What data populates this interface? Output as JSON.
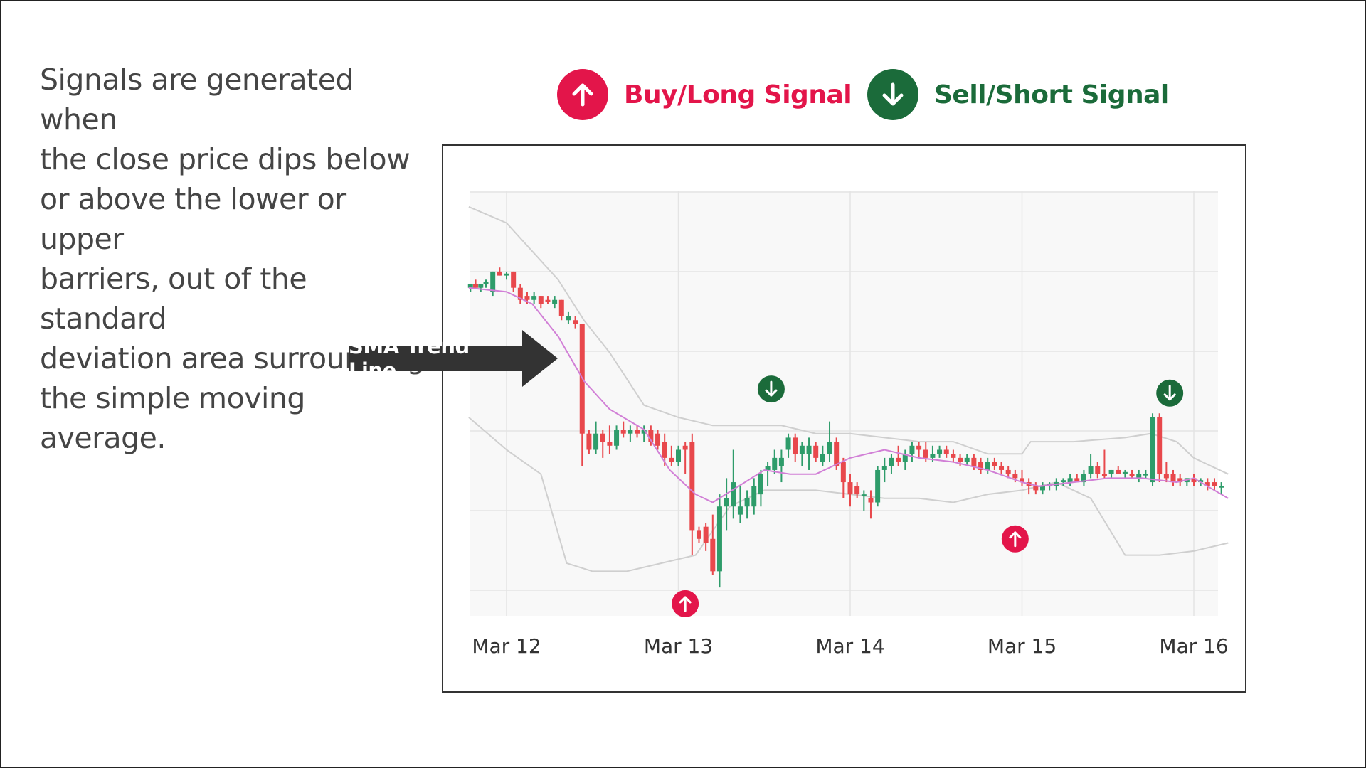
{
  "description": "Signals are generated when the close price dips below or above the lower or upper barriers, out of the standard deviation area surrounding the simple moving average.",
  "description_lines": [
    "Signals are generated when",
    "the close price dips below",
    "or above the lower or upper",
    "barriers, out of the standard",
    "deviation area surrounding",
    "the simple moving average."
  ],
  "legend": {
    "buy": {
      "label": "Buy/Long Signal",
      "icon": "arrow-up-icon",
      "color": "#e3154a"
    },
    "sell": {
      "label": "Sell/Short Signal",
      "icon": "arrow-down-icon",
      "color": "#1b6b3a"
    }
  },
  "callout": {
    "label": "SMA Trend Line",
    "icon": "arrow-right-icon",
    "color": "#333333"
  },
  "colors": {
    "up_candle": "#2e9c6a",
    "down_candle": "#e8484c",
    "sma": "#d17fd6",
    "band": "#cfcfcf",
    "plot_bg": "#f8f8f8",
    "grid": "#e4e4e4"
  },
  "chart_data": {
    "type": "candlestick",
    "title": "",
    "xlabel": "",
    "ylabel": "",
    "x_ticks": [
      "Mar 12",
      "Mar 13",
      "Mar 14",
      "Mar 15",
      "Mar 16"
    ],
    "x_range": [
      -0.22,
      4.2
    ],
    "y_range": [
      -5,
      100
    ],
    "grid": true,
    "indicators": [
      "SMA",
      "Bollinger Bands (upper/lower)"
    ],
    "sma": [
      [
        -0.22,
        76
      ],
      [
        0,
        75
      ],
      [
        0.15,
        72
      ],
      [
        0.3,
        64
      ],
      [
        0.45,
        53
      ],
      [
        0.6,
        46
      ],
      [
        0.8,
        41
      ],
      [
        0.95,
        31
      ],
      [
        1.1,
        25
      ],
      [
        1.2,
        23
      ],
      [
        1.35,
        27
      ],
      [
        1.5,
        31
      ],
      [
        1.65,
        30
      ],
      [
        1.8,
        30
      ],
      [
        2.0,
        34
      ],
      [
        2.2,
        36
      ],
      [
        2.4,
        34
      ],
      [
        2.6,
        33
      ],
      [
        2.8,
        31
      ],
      [
        3.0,
        28
      ],
      [
        3.1,
        27
      ],
      [
        3.3,
        28
      ],
      [
        3.5,
        29
      ],
      [
        3.7,
        29
      ],
      [
        3.9,
        28
      ],
      [
        4.0,
        29
      ],
      [
        4.2,
        24
      ]
    ],
    "upper_band": [
      [
        -0.22,
        96
      ],
      [
        0,
        92
      ],
      [
        0.15,
        85
      ],
      [
        0.3,
        78
      ],
      [
        0.45,
        68
      ],
      [
        0.6,
        60
      ],
      [
        0.8,
        47
      ],
      [
        1.0,
        44
      ],
      [
        1.2,
        42
      ],
      [
        1.4,
        42
      ],
      [
        1.6,
        42
      ],
      [
        1.8,
        40
      ],
      [
        2.0,
        40
      ],
      [
        2.2,
        39
      ],
      [
        2.4,
        38
      ],
      [
        2.6,
        38
      ],
      [
        2.8,
        35
      ],
      [
        3.0,
        35
      ],
      [
        3.05,
        38
      ],
      [
        3.3,
        38
      ],
      [
        3.6,
        39
      ],
      [
        3.75,
        40
      ],
      [
        3.9,
        38
      ],
      [
        4.0,
        34
      ],
      [
        4.1,
        32
      ],
      [
        4.2,
        30
      ]
    ],
    "lower_band": [
      [
        -0.22,
        44
      ],
      [
        0,
        36
      ],
      [
        0.2,
        30
      ],
      [
        0.35,
        8
      ],
      [
        0.5,
        6
      ],
      [
        0.7,
        6
      ],
      [
        0.9,
        8
      ],
      [
        1.1,
        10
      ],
      [
        1.3,
        22
      ],
      [
        1.5,
        26
      ],
      [
        1.8,
        26
      ],
      [
        2.0,
        25
      ],
      [
        2.2,
        24
      ],
      [
        2.4,
        24
      ],
      [
        2.6,
        23
      ],
      [
        2.8,
        25
      ],
      [
        3.0,
        26
      ],
      [
        3.2,
        28
      ],
      [
        3.4,
        24
      ],
      [
        3.6,
        10
      ],
      [
        3.8,
        10
      ],
      [
        4.0,
        11
      ],
      [
        4.2,
        13
      ]
    ],
    "candles": [
      {
        "t": -0.21,
        "o": 76,
        "h": 77,
        "l": 75,
        "c": 77
      },
      {
        "t": -0.18,
        "o": 77,
        "h": 78,
        "l": 76,
        "c": 76
      },
      {
        "t": -0.15,
        "o": 76,
        "h": 77,
        "l": 75,
        "c": 77
      },
      {
        "t": -0.12,
        "o": 77,
        "h": 78,
        "l": 76,
        "c": 77.5
      },
      {
        "t": -0.08,
        "o": 75,
        "h": 80,
        "l": 74,
        "c": 80
      },
      {
        "t": -0.04,
        "o": 80,
        "h": 81,
        "l": 79,
        "c": 79
      },
      {
        "t": 0.0,
        "o": 79,
        "h": 80,
        "l": 78,
        "c": 79.5
      },
      {
        "t": 0.04,
        "o": 80,
        "h": 80,
        "l": 75,
        "c": 76
      },
      {
        "t": 0.08,
        "o": 76,
        "h": 77,
        "l": 72,
        "c": 73
      },
      {
        "t": 0.12,
        "o": 74,
        "h": 75,
        "l": 72,
        "c": 73
      },
      {
        "t": 0.16,
        "o": 73,
        "h": 75,
        "l": 72,
        "c": 74
      },
      {
        "t": 0.2,
        "o": 74,
        "h": 74,
        "l": 71,
        "c": 72
      },
      {
        "t": 0.24,
        "o": 73,
        "h": 74,
        "l": 72,
        "c": 72.5
      },
      {
        "t": 0.28,
        "o": 72,
        "h": 74,
        "l": 71,
        "c": 73
      },
      {
        "t": 0.32,
        "o": 73,
        "h": 73,
        "l": 68,
        "c": 69
      },
      {
        "t": 0.36,
        "o": 68,
        "h": 70,
        "l": 67,
        "c": 69
      },
      {
        "t": 0.4,
        "o": 68,
        "h": 69,
        "l": 66,
        "c": 67
      },
      {
        "t": 0.44,
        "o": 67,
        "h": 67,
        "l": 32,
        "c": 40
      },
      {
        "t": 0.48,
        "o": 40,
        "h": 41,
        "l": 35,
        "c": 36
      },
      {
        "t": 0.52,
        "o": 36,
        "h": 43,
        "l": 35,
        "c": 40
      },
      {
        "t": 0.56,
        "o": 40,
        "h": 41,
        "l": 34,
        "c": 38
      },
      {
        "t": 0.6,
        "o": 38,
        "h": 42,
        "l": 35,
        "c": 37
      },
      {
        "t": 0.64,
        "o": 37,
        "h": 42,
        "l": 36,
        "c": 41
      },
      {
        "t": 0.68,
        "o": 41,
        "h": 43,
        "l": 39,
        "c": 40
      },
      {
        "t": 0.72,
        "o": 40,
        "h": 42,
        "l": 38,
        "c": 41
      },
      {
        "t": 0.76,
        "o": 41,
        "h": 42,
        "l": 39,
        "c": 40
      },
      {
        "t": 0.8,
        "o": 40,
        "h": 42,
        "l": 38,
        "c": 41
      },
      {
        "t": 0.84,
        "o": 41,
        "h": 42,
        "l": 37,
        "c": 38
      },
      {
        "t": 0.88,
        "o": 40,
        "h": 41,
        "l": 36,
        "c": 37
      },
      {
        "t": 0.92,
        "o": 38,
        "h": 40,
        "l": 32,
        "c": 34
      },
      {
        "t": 0.96,
        "o": 34,
        "h": 37,
        "l": 32,
        "c": 33
      },
      {
        "t": 1.0,
        "o": 33,
        "h": 37,
        "l": 32,
        "c": 36
      },
      {
        "t": 1.04,
        "o": 37,
        "h": 38,
        "l": 30,
        "c": 36
      },
      {
        "t": 1.08,
        "o": 38,
        "h": 40,
        "l": 10,
        "c": 16
      },
      {
        "t": 1.12,
        "o": 16,
        "h": 17,
        "l": 13,
        "c": 14
      },
      {
        "t": 1.16,
        "o": 17,
        "h": 18,
        "l": 11,
        "c": 13
      },
      {
        "t": 1.2,
        "o": 14,
        "h": 20,
        "l": 5,
        "c": 6
      },
      {
        "t": 1.24,
        "o": 6,
        "h": 25,
        "l": 2,
        "c": 22
      },
      {
        "t": 1.28,
        "o": 22,
        "h": 29,
        "l": 16,
        "c": 24
      },
      {
        "t": 1.32,
        "o": 22,
        "h": 36,
        "l": 19,
        "c": 28
      },
      {
        "t": 1.36,
        "o": 20,
        "h": 27,
        "l": 18,
        "c": 22
      },
      {
        "t": 1.4,
        "o": 22,
        "h": 26,
        "l": 19,
        "c": 24
      },
      {
        "t": 1.44,
        "o": 22,
        "h": 29,
        "l": 20,
        "c": 27
      },
      {
        "t": 1.48,
        "o": 25,
        "h": 31,
        "l": 22,
        "c": 30
      },
      {
        "t": 1.52,
        "o": 31,
        "h": 33,
        "l": 27,
        "c": 32
      },
      {
        "t": 1.56,
        "o": 31,
        "h": 36,
        "l": 30,
        "c": 34
      },
      {
        "t": 1.6,
        "o": 32,
        "h": 36,
        "l": 28,
        "c": 34
      },
      {
        "t": 1.64,
        "o": 36,
        "h": 40,
        "l": 34,
        "c": 39
      },
      {
        "t": 1.68,
        "o": 39,
        "h": 40,
        "l": 33,
        "c": 35
      },
      {
        "t": 1.72,
        "o": 35,
        "h": 38,
        "l": 32,
        "c": 37
      },
      {
        "t": 1.76,
        "o": 35,
        "h": 39,
        "l": 31,
        "c": 37
      },
      {
        "t": 1.8,
        "o": 37,
        "h": 38,
        "l": 33,
        "c": 34
      },
      {
        "t": 1.84,
        "o": 33,
        "h": 37,
        "l": 32,
        "c": 35
      },
      {
        "t": 1.88,
        "o": 35,
        "h": 43,
        "l": 33,
        "c": 38
      },
      {
        "t": 1.92,
        "o": 38,
        "h": 39,
        "l": 31,
        "c": 32
      },
      {
        "t": 1.96,
        "o": 33,
        "h": 34,
        "l": 24,
        "c": 28
      },
      {
        "t": 2.0,
        "o": 28,
        "h": 30,
        "l": 22,
        "c": 25
      },
      {
        "t": 2.04,
        "o": 27,
        "h": 28,
        "l": 24,
        "c": 25
      },
      {
        "t": 2.08,
        "o": 25,
        "h": 26,
        "l": 21,
        "c": 25
      },
      {
        "t": 2.12,
        "o": 24,
        "h": 26,
        "l": 19,
        "c": 23
      },
      {
        "t": 2.16,
        "o": 23,
        "h": 32,
        "l": 22,
        "c": 31
      },
      {
        "t": 2.2,
        "o": 31,
        "h": 34,
        "l": 28,
        "c": 32
      },
      {
        "t": 2.24,
        "o": 32,
        "h": 35,
        "l": 30,
        "c": 34
      },
      {
        "t": 2.28,
        "o": 34,
        "h": 37,
        "l": 32,
        "c": 33
      },
      {
        "t": 2.32,
        "o": 33,
        "h": 36,
        "l": 31,
        "c": 35
      },
      {
        "t": 2.36,
        "o": 35,
        "h": 38,
        "l": 33,
        "c": 37
      },
      {
        "t": 2.4,
        "o": 37,
        "h": 38,
        "l": 34,
        "c": 36
      },
      {
        "t": 2.44,
        "o": 36,
        "h": 38,
        "l": 33,
        "c": 34
      },
      {
        "t": 2.48,
        "o": 34,
        "h": 37,
        "l": 33,
        "c": 35
      },
      {
        "t": 2.52,
        "o": 35,
        "h": 37,
        "l": 34,
        "c": 36
      },
      {
        "t": 2.56,
        "o": 36,
        "h": 37,
        "l": 34,
        "c": 35
      },
      {
        "t": 2.6,
        "o": 35,
        "h": 36,
        "l": 33,
        "c": 34
      },
      {
        "t": 2.64,
        "o": 34,
        "h": 35,
        "l": 32,
        "c": 33
      },
      {
        "t": 2.68,
        "o": 33,
        "h": 35,
        "l": 32,
        "c": 34
      },
      {
        "t": 2.72,
        "o": 34,
        "h": 35,
        "l": 31,
        "c": 32
      },
      {
        "t": 2.76,
        "o": 33,
        "h": 34,
        "l": 30,
        "c": 31
      },
      {
        "t": 2.8,
        "o": 31,
        "h": 34,
        "l": 30,
        "c": 33
      },
      {
        "t": 2.84,
        "o": 33,
        "h": 34,
        "l": 31,
        "c": 32
      },
      {
        "t": 2.88,
        "o": 32,
        "h": 33,
        "l": 30,
        "c": 31
      },
      {
        "t": 2.92,
        "o": 31,
        "h": 32,
        "l": 29,
        "c": 30
      },
      {
        "t": 2.96,
        "o": 30,
        "h": 31,
        "l": 28,
        "c": 29
      },
      {
        "t": 3.0,
        "o": 29,
        "h": 31,
        "l": 27,
        "c": 28
      },
      {
        "t": 3.04,
        "o": 28,
        "h": 29,
        "l": 25,
        "c": 27
      },
      {
        "t": 3.08,
        "o": 27,
        "h": 28,
        "l": 25,
        "c": 26
      },
      {
        "t": 3.12,
        "o": 26,
        "h": 28,
        "l": 25,
        "c": 27
      },
      {
        "t": 3.16,
        "o": 27,
        "h": 28,
        "l": 26,
        "c": 27.5
      },
      {
        "t": 3.2,
        "o": 27,
        "h": 29,
        "l": 26,
        "c": 28
      },
      {
        "t": 3.24,
        "o": 28,
        "h": 29,
        "l": 27,
        "c": 28.5
      },
      {
        "t": 3.28,
        "o": 28,
        "h": 30,
        "l": 27,
        "c": 29
      },
      {
        "t": 3.32,
        "o": 29,
        "h": 30,
        "l": 28,
        "c": 28
      },
      {
        "t": 3.36,
        "o": 28,
        "h": 31,
        "l": 27,
        "c": 30
      },
      {
        "t": 3.4,
        "o": 30,
        "h": 35,
        "l": 29,
        "c": 32
      },
      {
        "t": 3.44,
        "o": 32,
        "h": 33,
        "l": 29,
        "c": 30
      },
      {
        "t": 3.48,
        "o": 30,
        "h": 36,
        "l": 29,
        "c": 29.5
      },
      {
        "t": 3.52,
        "o": 30,
        "h": 31,
        "l": 29,
        "c": 31
      },
      {
        "t": 3.56,
        "o": 31,
        "h": 32,
        "l": 30,
        "c": 30
      },
      {
        "t": 3.6,
        "o": 30,
        "h": 31,
        "l": 29,
        "c": 30.5
      },
      {
        "t": 3.64,
        "o": 30,
        "h": 31,
        "l": 29,
        "c": 29.5
      },
      {
        "t": 3.68,
        "o": 29,
        "h": 31,
        "l": 28,
        "c": 30
      },
      {
        "t": 3.72,
        "o": 30,
        "h": 31,
        "l": 29,
        "c": 30
      },
      {
        "t": 3.76,
        "o": 28,
        "h": 45,
        "l": 27,
        "c": 44
      },
      {
        "t": 3.8,
        "o": 44,
        "h": 45,
        "l": 28,
        "c": 30
      },
      {
        "t": 3.84,
        "o": 30,
        "h": 33,
        "l": 28,
        "c": 29
      },
      {
        "t": 3.88,
        "o": 30,
        "h": 31,
        "l": 27,
        "c": 28
      },
      {
        "t": 3.92,
        "o": 29,
        "h": 30,
        "l": 27,
        "c": 28
      },
      {
        "t": 3.96,
        "o": 28,
        "h": 29,
        "l": 27,
        "c": 29
      },
      {
        "t": 4.0,
        "o": 29,
        "h": 30,
        "l": 27,
        "c": 28
      },
      {
        "t": 4.04,
        "o": 28,
        "h": 29,
        "l": 27,
        "c": 28.5
      },
      {
        "t": 4.08,
        "o": 28,
        "h": 29,
        "l": 26,
        "c": 27
      },
      {
        "t": 4.12,
        "o": 28,
        "h": 29,
        "l": 26,
        "c": 27
      },
      {
        "t": 4.16,
        "o": 27,
        "h": 28,
        "l": 25,
        "c": 27
      }
    ],
    "signals": [
      {
        "type": "buy",
        "t": 1.04,
        "y": -2
      },
      {
        "type": "sell",
        "t": 1.54,
        "y": 51
      },
      {
        "type": "buy",
        "t": 2.96,
        "y": 14
      },
      {
        "type": "sell",
        "t": 3.86,
        "y": 50
      }
    ]
  }
}
